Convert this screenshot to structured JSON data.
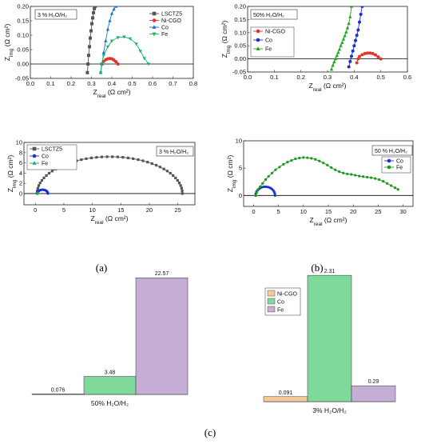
{
  "panel_labels": {
    "a": "(a)",
    "b": "(b)",
    "c": "(c)"
  },
  "chart_data": [
    {
      "id": "a_zoom",
      "type": "scatter",
      "annotation": "3 % H₂O/H₂",
      "xlabel": "Z_real (Ω cm²)",
      "ylabel": "Z_img (Ω cm²)",
      "xlim": [
        0.0,
        0.8
      ],
      "ylim": [
        -0.05,
        0.2
      ],
      "xticks": [
        "0.0",
        "0.1",
        "0.2",
        "0.3",
        "0.4",
        "0.5",
        "0.6",
        "0.7",
        "0.8"
      ],
      "yticks": [
        "-0.05",
        "0.00",
        "0.05",
        "0.10",
        "0.15",
        "0.20"
      ],
      "legend_position": "top-right",
      "series": [
        {
          "name": "LSCTZ5",
          "color": "#555555",
          "marker": "square",
          "line": true,
          "x": [
            0.28,
            0.283,
            0.286,
            0.29,
            0.294,
            0.298,
            0.302,
            0.306,
            0.31,
            0.314,
            0.318
          ],
          "y": [
            -0.03,
            0.0,
            0.03,
            0.06,
            0.09,
            0.115,
            0.14,
            0.16,
            0.178,
            0.192,
            0.2
          ]
        },
        {
          "name": "Ni-CGO",
          "color": "#e8312a",
          "marker": "circle",
          "line": true,
          "x": [
            0.35,
            0.36,
            0.37,
            0.38,
            0.39,
            0.4,
            0.41,
            0.42,
            0.43
          ],
          "y": [
            0.0,
            0.009,
            0.015,
            0.018,
            0.019,
            0.018,
            0.014,
            0.008,
            0.0
          ]
        },
        {
          "name": "Co",
          "color": "#1a73c9",
          "marker": "triangle-up",
          "line": true,
          "x": [
            0.345,
            0.352,
            0.36,
            0.37,
            0.38,
            0.39,
            0.4,
            0.41,
            0.42
          ],
          "y": [
            -0.03,
            0.0,
            0.04,
            0.08,
            0.12,
            0.15,
            0.175,
            0.19,
            0.2
          ]
        },
        {
          "name": "Fe",
          "color": "#16b36a",
          "marker": "triangle-down",
          "line": true,
          "x": [
            0.345,
            0.35,
            0.36,
            0.38,
            0.4,
            0.43,
            0.46,
            0.49,
            0.52,
            0.54,
            0.56,
            0.58
          ],
          "y": [
            -0.03,
            0.0,
            0.03,
            0.06,
            0.08,
            0.092,
            0.094,
            0.088,
            0.07,
            0.045,
            0.02,
            0.0
          ]
        }
      ]
    },
    {
      "id": "b_zoom",
      "type": "scatter",
      "annotation": "50% H₂O/H₂",
      "xlabel": "Z_real (Ω cm²)",
      "ylabel": "Z_img (Ω cm²)",
      "xlim": [
        0.0,
        0.6
      ],
      "ylim": [
        -0.05,
        0.2
      ],
      "xticks": [
        "0.0",
        "0.1",
        "0.2",
        "0.3",
        "0.4",
        "0.5",
        "0.6"
      ],
      "yticks": [
        "-0.05",
        "0.00",
        "0.05",
        "0.10",
        "0.15",
        "0.20"
      ],
      "legend_position": "left",
      "series": [
        {
          "name": "Ni-CGO",
          "color": "#e8312a",
          "marker": "circle",
          "line": true,
          "x": [
            0.41,
            0.415,
            0.42,
            0.43,
            0.44,
            0.45,
            0.46,
            0.47,
            0.48,
            0.49,
            0.5
          ],
          "y": [
            -0.015,
            0.0,
            0.009,
            0.016,
            0.02,
            0.022,
            0.022,
            0.02,
            0.015,
            0.008,
            0.0
          ]
        },
        {
          "name": "Co",
          "color": "#1a2fd6",
          "marker": "circle",
          "line": true,
          "x": [
            0.38,
            0.385,
            0.39,
            0.395,
            0.4,
            0.405,
            0.41,
            0.415,
            0.42,
            0.425,
            0.43
          ],
          "y": [
            -0.03,
            -0.01,
            0.01,
            0.03,
            0.05,
            0.07,
            0.09,
            0.11,
            0.14,
            0.17,
            0.2
          ]
        },
        {
          "name": "Fe",
          "color": "#1fa31f",
          "marker": "triangle-up",
          "line": true,
          "x": [
            0.315,
            0.32,
            0.325,
            0.33,
            0.335,
            0.34,
            0.345,
            0.35,
            0.355,
            0.36,
            0.365,
            0.37,
            0.375,
            0.38,
            0.385,
            0.39
          ],
          "y": [
            -0.04,
            -0.025,
            -0.012,
            0.0,
            0.012,
            0.024,
            0.036,
            0.05,
            0.062,
            0.075,
            0.088,
            0.102,
            0.118,
            0.135,
            0.16,
            0.2
          ]
        }
      ]
    },
    {
      "id": "a_full",
      "type": "scatter",
      "annotation": "3 % H₂O/H₂",
      "xlabel": "Z_real (Ω cm²)",
      "ylabel": "Z_img (Ω cm²)",
      "xlim": [
        -2,
        28
      ],
      "ylim": [
        -2.2,
        10
      ],
      "xticks": [
        "0",
        "5",
        "10",
        "15",
        "20",
        "25"
      ],
      "yticks": [
        "0",
        "2",
        "4",
        "6",
        "8",
        "10"
      ],
      "legend_position": "top-left",
      "series": [
        {
          "name": "LSCTZ5",
          "color": "#555555",
          "marker": "square",
          "line": true,
          "arc": {
            "x0": 0.3,
            "x1": 25.8,
            "peak": 7.2,
            "n": 44
          }
        },
        {
          "name": "Co",
          "color": "#1a2fd6",
          "marker": "circle",
          "line": true,
          "arc": {
            "x0": 0.35,
            "x1": 2.2,
            "peak": 0.75,
            "n": 14
          }
        },
        {
          "name": "Fe",
          "color": "#16b36a",
          "marker": "triangle-up",
          "line": true,
          "x": [
            0.35,
            0.4,
            0.45,
            0.5
          ],
          "y": [
            0.0,
            0.05,
            0.08,
            0.1
          ]
        }
      ]
    },
    {
      "id": "b_full",
      "type": "scatter",
      "annotation": "50 % H₂O/H₂",
      "xlabel": "Z_real (Ω cm²)",
      "ylabel": "Z_img (Ω cm²)",
      "xlim": [
        -2,
        32
      ],
      "ylim": [
        -2,
        10
      ],
      "xticks": [
        "0",
        "5",
        "10",
        "15",
        "20",
        "25",
        "30"
      ],
      "yticks": [
        "0",
        "5",
        "10"
      ],
      "legend_position": "right",
      "series": [
        {
          "name": "Co",
          "color": "#1a2fd6",
          "marker": "circle",
          "line": true,
          "arc": {
            "x0": 0.4,
            "x1": 4.3,
            "peak": 1.6,
            "n": 16
          }
        },
        {
          "name": "Fe",
          "color": "#1a9a1a",
          "marker": "circle",
          "line": true,
          "x": [
            0.4,
            0.6,
            0.9,
            1.3,
            1.8,
            2.4,
            3.0,
            3.7,
            4.4,
            5.2,
            6.0,
            6.8,
            7.6,
            8.4,
            9.2,
            10.0,
            10.8,
            11.6,
            12.4,
            13.2,
            14.0,
            14.8,
            15.6,
            16.4,
            17.2,
            18.0,
            18.8,
            19.6,
            20.4,
            21.2,
            22.0,
            22.8,
            23.6,
            24.4,
            25.2,
            26.0,
            26.8,
            27.6,
            28.4,
            29.0
          ],
          "y": [
            0.0,
            0.5,
            1.0,
            1.6,
            2.2,
            2.9,
            3.5,
            4.1,
            4.7,
            5.2,
            5.7,
            6.1,
            6.4,
            6.7,
            6.85,
            6.95,
            6.9,
            6.8,
            6.6,
            6.3,
            5.95,
            5.55,
            5.1,
            4.7,
            4.35,
            4.1,
            3.95,
            3.85,
            3.7,
            3.55,
            3.45,
            3.35,
            3.25,
            3.1,
            2.9,
            2.6,
            2.2,
            1.8,
            1.4,
            1.1
          ]
        }
      ]
    },
    {
      "id": "c_50",
      "type": "bar",
      "xlabel": "50% H₂O/H₂",
      "ylim": [
        0,
        24
      ],
      "categories": [
        "Ni-CGO",
        "Co",
        "Fe"
      ],
      "colors": [
        "#f6c99a",
        "#7fd99a",
        "#c5add6"
      ],
      "values": [
        0.076,
        3.48,
        22.57
      ],
      "value_labels": [
        "0.076",
        "3.48",
        "22.57"
      ]
    },
    {
      "id": "c_3",
      "type": "bar",
      "xlabel": "3% H₂O/H₂",
      "ylim": [
        0,
        2.4
      ],
      "categories": [
        "Ni-CGO",
        "Co",
        "Fe"
      ],
      "colors": [
        "#f6c99a",
        "#7fd99a",
        "#c5add6"
      ],
      "values": [
        0.091,
        2.31,
        0.29
      ],
      "value_labels": [
        "0.091",
        "2.31",
        "0.29"
      ],
      "legend_position": "top-left"
    }
  ]
}
